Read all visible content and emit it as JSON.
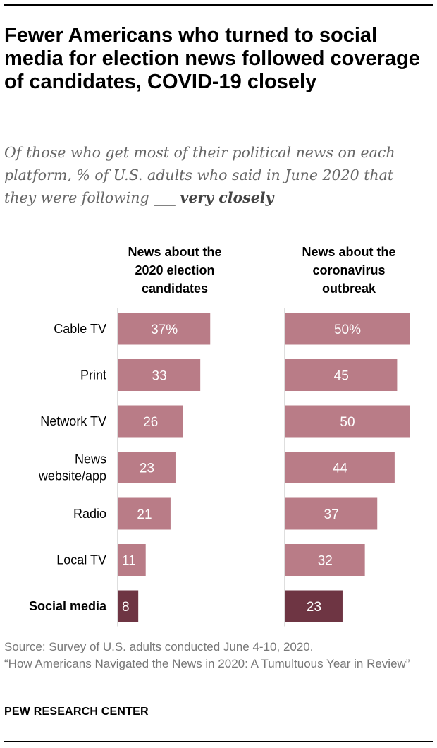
{
  "header": {
    "title": "Fewer Americans who turned to social media for election news followed coverage of candidates, COVID-19 closely",
    "subtitle_prefix": "Of those who get most of their political news on each platform, % of U.S. adults who said in June 2020 that they were following ___ ",
    "subtitle_emphasis": "very closely"
  },
  "colors": {
    "bar": "#b97c87",
    "bar_highlight": "#6e3543",
    "axis": "#bdbdbd",
    "label_text": "#ffffff"
  },
  "chart_data": {
    "type": "bar",
    "orientation": "horizontal",
    "categories": [
      "Cable TV",
      "Print",
      "Network TV",
      "News website/app",
      "Radio",
      "Local TV",
      "Social media"
    ],
    "category_lines": [
      [
        "Cable TV"
      ],
      [
        "Print"
      ],
      [
        "Network TV"
      ],
      [
        "News",
        "website/app"
      ],
      [
        "Radio"
      ],
      [
        "Local TV"
      ],
      [
        "Social media"
      ]
    ],
    "highlight_category": "Social media",
    "series": [
      {
        "name": "News about the 2020 election candidates",
        "name_lines": [
          "News about the",
          "2020 election",
          "candidates"
        ],
        "values": [
          37,
          33,
          26,
          23,
          21,
          11,
          8
        ],
        "labels": [
          "37%",
          "33",
          "26",
          "23",
          "21",
          "11",
          "8"
        ]
      },
      {
        "name": "News about the coronavirus outbreak",
        "name_lines": [
          "News about the",
          "coronavirus",
          "outbreak"
        ],
        "values": [
          50,
          45,
          50,
          44,
          37,
          32,
          23
        ],
        "labels": [
          "50%",
          "45",
          "50",
          "44",
          "37",
          "32",
          "23"
        ]
      }
    ],
    "xlim": [
      0,
      50
    ]
  },
  "footer": {
    "source": "Source: Survey of U.S. adults conducted June 4-10, 2020.",
    "report": "“How Americans Navigated the News in 2020: A Tumultuous Year in Review”",
    "brand": "PEW RESEARCH CENTER"
  }
}
